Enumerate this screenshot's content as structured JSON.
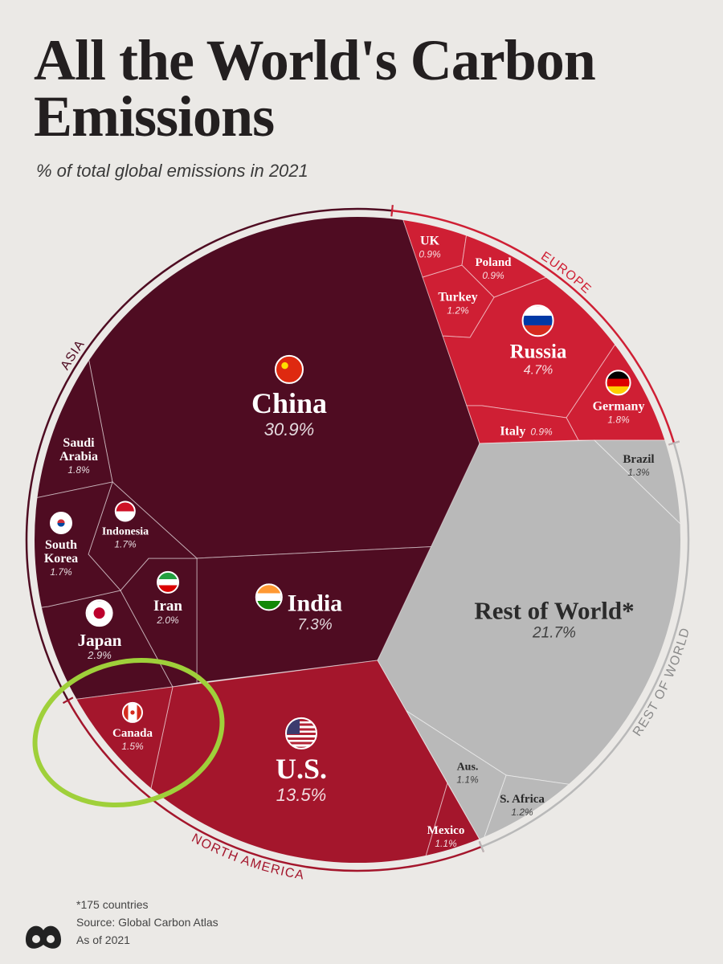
{
  "chart_data": {
    "type": "voronoi",
    "title": "All the World's Carbon Emissions",
    "subtitle": "% of total global emissions in 2021",
    "groups": [
      {
        "name": "ASIA",
        "color": "#4f0c22",
        "categories": [
          "China",
          "India",
          "Japan",
          "Iran",
          "Saudi Arabia",
          "Indonesia",
          "South Korea"
        ],
        "values": [
          30.9,
          7.3,
          2.9,
          2.0,
          1.8,
          1.7,
          1.7
        ],
        "value_labels": [
          "30.9%",
          "7.3%",
          "2.9%",
          "2.0%",
          "1.8%",
          "1.7%",
          "1.7%"
        ]
      },
      {
        "name": "EUROPE",
        "color": "#cf1f34",
        "categories": [
          "Russia",
          "Germany",
          "Turkey",
          "UK",
          "Poland",
          "Italy"
        ],
        "values": [
          4.7,
          1.8,
          1.2,
          0.9,
          0.9,
          0.9
        ],
        "value_labels": [
          "4.7%",
          "1.8%",
          "1.2%",
          "0.9%",
          "0.9%",
          "0.9%"
        ]
      },
      {
        "name": "NORTH AMERICA",
        "color": "#a4162c",
        "categories": [
          "U.S.",
          "Canada",
          "Mexico"
        ],
        "values": [
          13.5,
          1.5,
          1.1
        ],
        "value_labels": [
          "13.5%",
          "1.5%",
          "1.1%"
        ]
      },
      {
        "name": "REST OF WORLD",
        "color": "#b9b9b9",
        "categories": [
          "Rest of World*",
          "Brazil",
          "S. Africa",
          "Aus."
        ],
        "values": [
          21.7,
          1.3,
          1.2,
          1.1
        ],
        "value_labels": [
          "21.7%",
          "1.3%",
          "1.2%",
          "1.1%"
        ]
      }
    ]
  },
  "footer": {
    "note": "*175 countries",
    "source": "Source: Global Carbon Atlas",
    "date": "As of 2021"
  }
}
